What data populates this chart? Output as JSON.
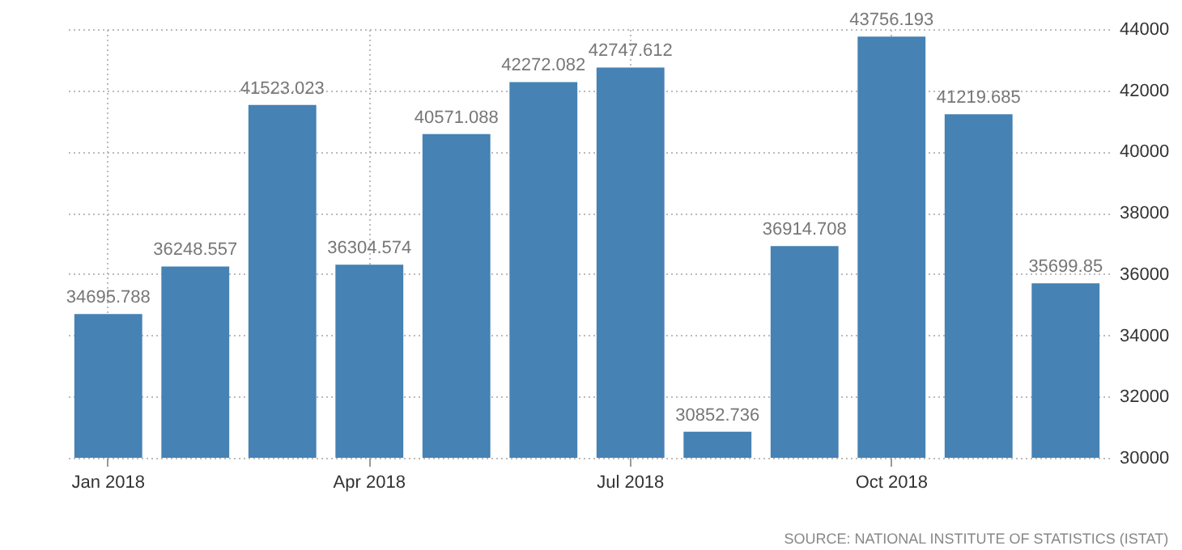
{
  "chart_data": {
    "type": "bar",
    "categories": [
      "Jan 2018",
      null,
      null,
      "Apr 2018",
      null,
      null,
      "Jul 2018",
      null,
      null,
      "Oct 2018",
      null,
      null
    ],
    "values": [
      34695.788,
      36248.557,
      41523.023,
      36304.574,
      40571.088,
      42272.082,
      42747.612,
      30852.736,
      36914.708,
      43756.193,
      41219.685,
      35699.85
    ],
    "color": "#4682b4",
    "ylim": [
      30000,
      44000
    ],
    "yticks": [
      30000,
      32000,
      34000,
      36000,
      38000,
      40000,
      42000,
      44000
    ],
    "grid": true,
    "data_labels": true,
    "annotations": [
      "SOURCE: NATIONAL INSTITUTE OF STATISTICS (ISTAT)"
    ]
  }
}
